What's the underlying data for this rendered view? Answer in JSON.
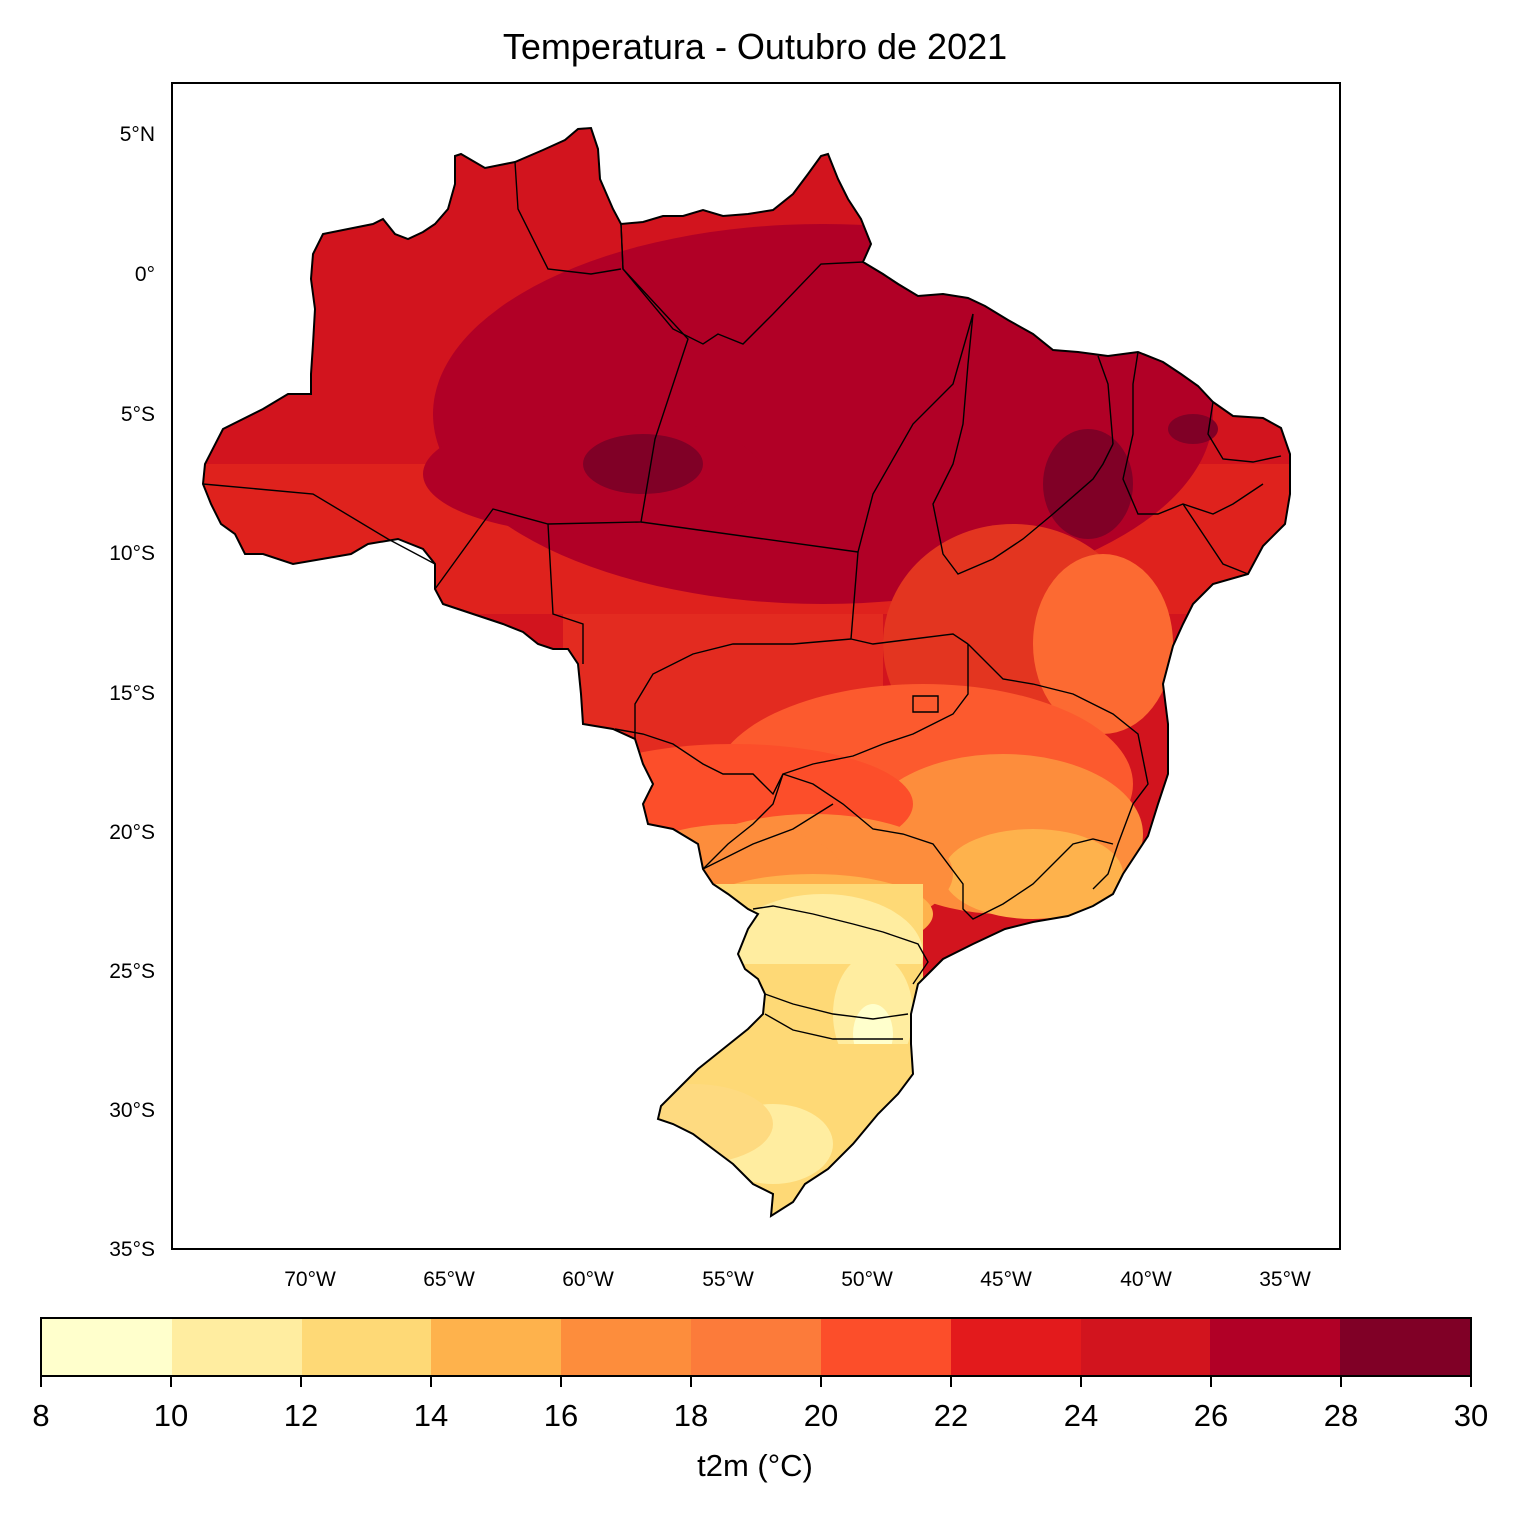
{
  "title": "Temperatura - Outubro de 2021",
  "map": {
    "region": "Brasil",
    "variable": "t2m",
    "projection": "PlateCarree",
    "lon_range": [
      -75,
      -33
    ],
    "lat_range": [
      -35,
      7
    ],
    "lat_ticks": [
      "5°N",
      "0°",
      "5°S",
      "10°S",
      "15°S",
      "20°S",
      "25°S",
      "30°S",
      "35°S"
    ],
    "lon_ticks": [
      "70°W",
      "65°W",
      "60°W",
      "55°W",
      "50°W",
      "45°W",
      "40°W",
      "35°W"
    ],
    "state_borders": true,
    "regional_pattern": [
      {
        "region": "Norte (Amazonas, Pará)",
        "range": "24-28"
      },
      {
        "region": "Centro do Pará / Sul do Amazonas",
        "range": "28-30"
      },
      {
        "region": "Nordeste interior (Piauí)",
        "range": "28-30"
      },
      {
        "region": "Mato Grosso / Goiás",
        "range": "22-26"
      },
      {
        "region": "Minas Gerais",
        "range": "18-22"
      },
      {
        "region": "São Paulo / Mato Grosso do Sul",
        "range": "16-22"
      },
      {
        "region": "Paraná / Santa Catarina",
        "range": "10-14"
      },
      {
        "region": "Rio Grande do Sul",
        "range": "12-16"
      }
    ]
  },
  "colorbar": {
    "label": "t2m (°C)",
    "ticks": [
      "8",
      "10",
      "12",
      "14",
      "16",
      "18",
      "20",
      "22",
      "24",
      "26",
      "28",
      "30"
    ],
    "colors": [
      "#ffffcc",
      "#ffeda0",
      "#fed976",
      "#feb24c",
      "#fd8d3c",
      "#fc7b3a",
      "#fc4e2a",
      "#e31a1c",
      "#d2141e",
      "#b10026",
      "#800026"
    ],
    "cmap": "YlOrRd"
  }
}
